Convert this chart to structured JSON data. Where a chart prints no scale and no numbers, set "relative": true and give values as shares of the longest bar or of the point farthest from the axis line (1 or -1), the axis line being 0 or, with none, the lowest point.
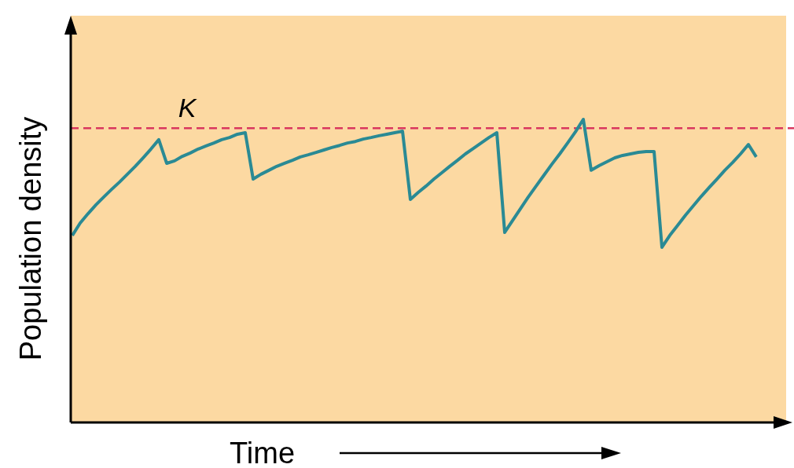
{
  "chart_data": {
    "type": "line",
    "relative": true,
    "xlabel": "Time",
    "ylabel": "Population density",
    "categories": [
      null,
      null,
      null,
      null,
      null,
      null,
      null,
      null,
      null,
      null,
      null,
      null,
      null,
      null,
      null,
      null,
      null,
      null,
      null,
      null,
      null,
      null,
      null,
      null,
      null,
      null,
      null,
      null,
      null,
      null,
      null,
      null,
      null,
      null,
      null,
      null,
      null,
      null,
      null,
      null,
      null,
      null,
      null,
      null,
      null,
      null,
      null,
      null,
      null,
      null,
      null,
      null,
      null,
      null,
      null,
      null,
      null,
      null,
      null,
      null,
      null,
      null,
      null,
      null,
      null,
      null,
      null,
      null,
      null,
      null,
      null,
      null,
      null,
      null,
      null,
      null,
      null,
      null,
      null,
      null,
      null,
      null,
      null,
      null,
      null,
      null,
      null,
      null,
      null,
      null,
      null
    ],
    "series": [
      {
        "color": "#2a8a94",
        "values": [
          0.617,
          0.658,
          0.689,
          0.718,
          0.744,
          0.769,
          0.793,
          0.819,
          0.845,
          0.873,
          0.902,
          0.933,
          0.855,
          0.863,
          0.878,
          0.889,
          0.902,
          0.912,
          0.922,
          0.933,
          0.94,
          0.951,
          0.956,
          0.803,
          0.819,
          0.832,
          0.845,
          0.855,
          0.865,
          0.876,
          0.883,
          0.891,
          0.899,
          0.907,
          0.914,
          0.922,
          0.927,
          0.935,
          0.94,
          0.946,
          0.951,
          0.956,
          0.961,
          0.736,
          0.759,
          0.78,
          0.803,
          0.824,
          0.845,
          0.865,
          0.886,
          0.904,
          0.922,
          0.94,
          0.956,
          0.627,
          0.666,
          0.705,
          0.744,
          0.78,
          0.816,
          0.852,
          0.886,
          0.922,
          0.959,
          1.0,
          0.832,
          0.847,
          0.86,
          0.873,
          0.881,
          0.886,
          0.891,
          0.894,
          0.894,
          0.578,
          0.617,
          0.65,
          0.684,
          0.715,
          0.746,
          0.775,
          0.803,
          0.832,
          0.858,
          0.886,
          0.917,
          0.876,
          null,
          null,
          null
        ]
      }
    ],
    "ref_lines": [
      {
        "axis": "y",
        "value": 0.971,
        "label": "K",
        "color": "#d9365e",
        "line_style": "dashed"
      }
    ],
    "marker": "none",
    "line_style": "solid"
  }
}
